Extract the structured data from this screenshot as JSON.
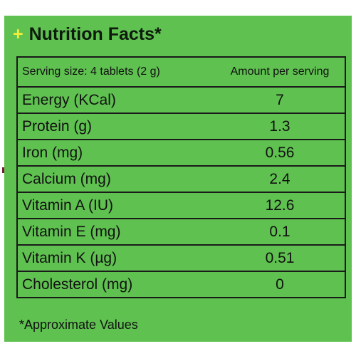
{
  "header": {
    "plus_symbol": "+",
    "title": "Nutrition Facts*"
  },
  "table": {
    "columns": [
      "Serving size: 4 tablets (2 g)",
      "Amount per serving"
    ],
    "rows": [
      {
        "nutrient": "Energy (KCal)",
        "amount": "7"
      },
      {
        "nutrient": "Protein (g)",
        "amount": "1.3"
      },
      {
        "nutrient": "Iron (mg)",
        "amount": "0.56"
      },
      {
        "nutrient": "Calcium (mg)",
        "amount": "2.4"
      },
      {
        "nutrient": "Vitamin A (IU)",
        "amount": "12.6"
      },
      {
        "nutrient": "Vitamin E (mg)",
        "amount": "0.1"
      },
      {
        "nutrient": "Vitamin K (µg)",
        "amount": "0.51"
      },
      {
        "nutrient": "Cholesterol (mg)",
        "amount": "0"
      }
    ]
  },
  "footnote": "*Approximate Values",
  "colors": {
    "panel_background": "#5fc150",
    "plus_accent": "#f2ef3a",
    "text": "#111111"
  }
}
